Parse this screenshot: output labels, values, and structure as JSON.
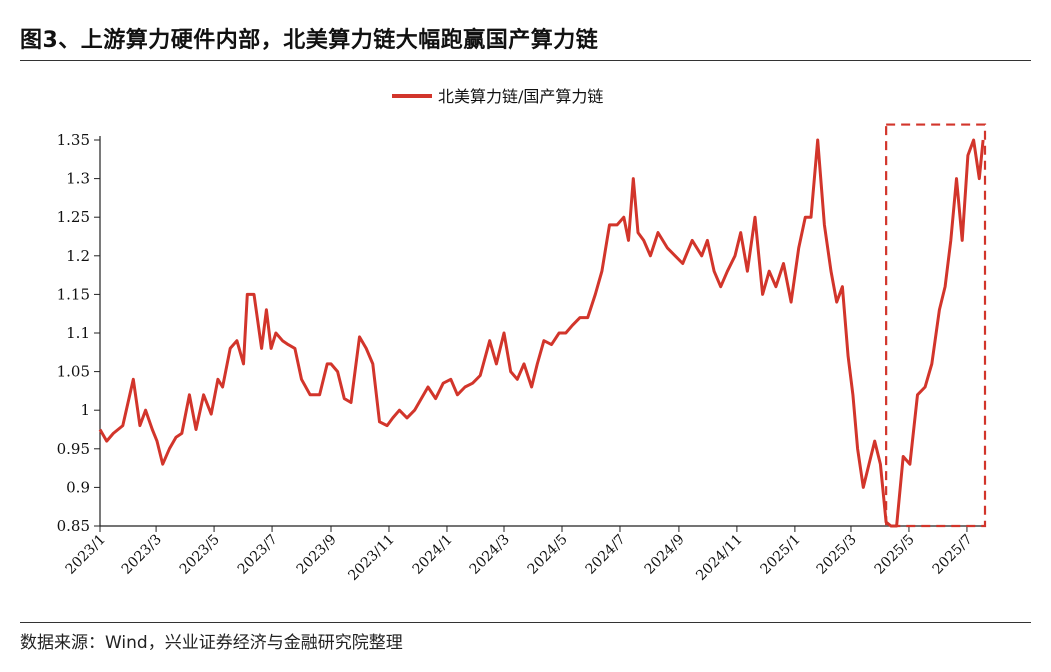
{
  "header": {
    "title": "图3、上游算力硬件内部，北美算力链大幅跑赢国产算力链"
  },
  "footer": {
    "source": "数据来源：Wind，兴业证券经济与金融研究院整理"
  },
  "colors": {
    "series": "#d2352b",
    "axis": "#222222"
  },
  "chart_data": {
    "type": "line",
    "title": "",
    "xlabel": "",
    "ylabel": "",
    "ylim": [
      0.85,
      1.35
    ],
    "yticks": [
      1.35,
      1.3,
      1.25,
      1.2,
      1.15,
      1.1,
      1.05,
      1,
      0.95,
      0.9,
      0.85
    ],
    "ytick_labels": [
      "1.35",
      "1.3",
      "1.25",
      "1.2",
      "1.15",
      "1.1",
      "1.05",
      "1",
      "0.95",
      "0.9",
      "0.85"
    ],
    "xticks": [
      "2023/1",
      "2023/3",
      "2023/5",
      "2023/7",
      "2023/9",
      "2023/11",
      "2024/1",
      "2024/3",
      "2024/5",
      "2024/7",
      "2024/9",
      "2024/11",
      "2025/1",
      "2025/3",
      "2025/5",
      "2025/7"
    ],
    "xlim": [
      "2023-01-01",
      "2025-07-20"
    ],
    "grid": false,
    "legend": "top-center",
    "annotations": [
      {
        "type": "dashed-box",
        "x": [
          "2025-04-07",
          "2025-07-20"
        ],
        "y": [
          0.85,
          1.37
        ],
        "color": "#d2352b"
      }
    ],
    "series": [
      {
        "name": "北美算力链/国产算力链",
        "color": "#d2352b",
        "x": [
          "2023-01-01",
          "2023-01-08",
          "2023-01-15",
          "2023-01-25",
          "2023-02-05",
          "2023-02-12",
          "2023-02-18",
          "2023-02-25",
          "2023-03-02",
          "2023-03-08",
          "2023-03-15",
          "2023-03-22",
          "2023-03-28",
          "2023-04-05",
          "2023-04-12",
          "2023-04-20",
          "2023-04-28",
          "2023-05-05",
          "2023-05-10",
          "2023-05-18",
          "2023-05-25",
          "2023-06-01",
          "2023-06-05",
          "2023-06-12",
          "2023-06-20",
          "2023-06-25",
          "2023-06-30",
          "2023-07-05",
          "2023-07-12",
          "2023-07-18",
          "2023-07-25",
          "2023-08-01",
          "2023-08-10",
          "2023-08-20",
          "2023-08-28",
          "2023-09-01",
          "2023-09-08",
          "2023-09-15",
          "2023-09-22",
          "2023-10-01",
          "2023-10-08",
          "2023-10-15",
          "2023-10-22",
          "2023-10-30",
          "2023-11-05",
          "2023-11-12",
          "2023-11-20",
          "2023-11-28",
          "2023-12-05",
          "2023-12-12",
          "2023-12-20",
          "2023-12-28",
          "2024-01-05",
          "2024-01-12",
          "2024-01-20",
          "2024-01-28",
          "2024-02-05",
          "2024-02-15",
          "2024-02-22",
          "2024-03-01",
          "2024-03-08",
          "2024-03-15",
          "2024-03-22",
          "2024-03-30",
          "2024-04-05",
          "2024-04-12",
          "2024-04-20",
          "2024-04-28",
          "2024-05-05",
          "2024-05-12",
          "2024-05-20",
          "2024-05-28",
          "2024-06-05",
          "2024-06-12",
          "2024-06-20",
          "2024-06-28",
          "2024-07-05",
          "2024-07-10",
          "2024-07-15",
          "2024-07-20",
          "2024-07-26",
          "2024-08-02",
          "2024-08-10",
          "2024-08-20",
          "2024-08-28",
          "2024-09-05",
          "2024-09-15",
          "2024-09-25",
          "2024-10-01",
          "2024-10-08",
          "2024-10-15",
          "2024-10-22",
          "2024-10-30",
          "2024-11-05",
          "2024-11-12",
          "2024-11-20",
          "2024-11-28",
          "2024-12-05",
          "2024-12-12",
          "2024-12-20",
          "2024-12-28",
          "2025-01-05",
          "2025-01-12",
          "2025-01-18",
          "2025-01-25",
          "2025-02-01",
          "2025-02-08",
          "2025-02-14",
          "2025-02-20",
          "2025-02-26",
          "2025-03-03",
          "2025-03-08",
          "2025-03-14",
          "2025-03-20",
          "2025-03-26",
          "2025-04-01",
          "2025-04-07",
          "2025-04-12",
          "2025-04-18",
          "2025-04-25",
          "2025-05-02",
          "2025-05-10",
          "2025-05-18",
          "2025-05-25",
          "2025-06-02",
          "2025-06-08",
          "2025-06-14",
          "2025-06-20",
          "2025-06-26",
          "2025-07-02",
          "2025-07-08",
          "2025-07-14",
          "2025-07-18"
        ],
        "values": [
          0.975,
          0.96,
          0.97,
          0.98,
          1.04,
          0.98,
          1.0,
          0.975,
          0.96,
          0.93,
          0.95,
          0.965,
          0.97,
          1.02,
          0.975,
          1.02,
          0.995,
          1.04,
          1.03,
          1.08,
          1.09,
          1.06,
          1.15,
          1.15,
          1.08,
          1.13,
          1.08,
          1.1,
          1.09,
          1.085,
          1.08,
          1.04,
          1.02,
          1.02,
          1.06,
          1.06,
          1.05,
          1.015,
          1.01,
          1.095,
          1.08,
          1.06,
          0.985,
          0.98,
          0.99,
          1.0,
          0.99,
          1.0,
          1.015,
          1.03,
          1.015,
          1.035,
          1.04,
          1.02,
          1.03,
          1.035,
          1.045,
          1.09,
          1.06,
          1.1,
          1.05,
          1.04,
          1.06,
          1.03,
          1.06,
          1.09,
          1.085,
          1.1,
          1.1,
          1.11,
          1.12,
          1.12,
          1.15,
          1.18,
          1.24,
          1.24,
          1.25,
          1.22,
          1.3,
          1.23,
          1.22,
          1.2,
          1.23,
          1.21,
          1.2,
          1.19,
          1.22,
          1.2,
          1.22,
          1.18,
          1.16,
          1.18,
          1.2,
          1.23,
          1.18,
          1.25,
          1.15,
          1.18,
          1.16,
          1.19,
          1.14,
          1.21,
          1.25,
          1.25,
          1.35,
          1.24,
          1.18,
          1.14,
          1.16,
          1.07,
          1.02,
          0.95,
          0.9,
          0.93,
          0.96,
          0.93,
          0.855,
          0.85,
          0.85,
          0.94,
          0.93,
          1.02,
          1.03,
          1.06,
          1.13,
          1.16,
          1.22,
          1.3,
          1.22,
          1.33,
          1.35,
          1.3,
          1.35
        ]
      }
    ]
  }
}
